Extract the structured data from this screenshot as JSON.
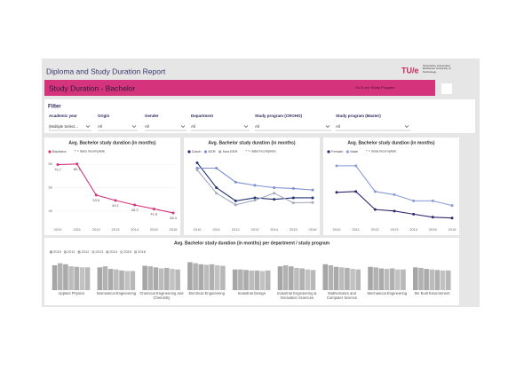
{
  "header": {
    "title": "Diploma and Study Duration Report",
    "logo": "TU/e",
    "logo_caption": "Technische Universiteit Eindhoven University of Technology",
    "banner": "Study Duration - Bachelor",
    "link": "Go to our Study Program"
  },
  "filter": {
    "title": "Filter",
    "fields": [
      {
        "label": "Academic year",
        "value": "(Multiple Select..."
      },
      {
        "label": "Origin",
        "value": "All"
      },
      {
        "label": "Gender",
        "value": "All"
      },
      {
        "label": "Department",
        "value": "All"
      },
      {
        "label": "Study program (CROHO)",
        "value": "All"
      },
      {
        "label": "Study program (Master)",
        "value": "All"
      }
    ]
  },
  "chart_data": [
    {
      "type": "line",
      "title": "Avg. Bachelor study duration (in months)",
      "note": "* = data incomplete",
      "categories": [
        "2010",
        "2011",
        "2012",
        "2013",
        "2014",
        "2015",
        "2016"
      ],
      "series": [
        {
          "name": "Bachelor",
          "color": "#d6337d",
          "values": [
            79.7,
            80.3,
            53.6,
            49.1,
            45.2,
            41.8,
            38.4
          ]
        }
      ],
      "ylim": [
        30,
        90
      ],
      "yticks": [
        40,
        60,
        80
      ],
      "grid": true,
      "data_labels": true
    },
    {
      "type": "line",
      "title": "Avg. Bachelor study duration (in months)",
      "note": "* = data incomplete",
      "categories": [
        "2010",
        "2011",
        "2012",
        "2013",
        "2014",
        "2015",
        "2016"
      ],
      "series": [
        {
          "name": "Dutch",
          "color": "#243473",
          "values": [
            81.3,
            60,
            48.7,
            51.3,
            50,
            51.3,
            51.3
          ]
        },
        {
          "name": "EER",
          "color": "#7d8fd0",
          "values": [
            76.7,
            76.7,
            64.7,
            62,
            60,
            59.3,
            58
          ]
        },
        {
          "name": "Non EER",
          "color": "#a3aabf",
          "values": [
            75.3,
            55.3,
            45.3,
            49.3,
            55.3,
            47,
            47.3
          ]
        }
      ],
      "ylim": [
        30,
        90
      ],
      "yticks": [],
      "grid": false,
      "data_labels": false
    },
    {
      "type": "line",
      "title": "Avg. Bachelor study duration (in months)",
      "note": "* = data incomplete",
      "categories": [
        "2010",
        "2011",
        "2012",
        "2013",
        "2014",
        "2015",
        "2016"
      ],
      "series": [
        {
          "name": "Female",
          "color": "#2c2a6e",
          "values": [
            56,
            56.7,
            41.3,
            40,
            37.3,
            34.7,
            34
          ]
        },
        {
          "name": "Male",
          "color": "#8a9bd6",
          "values": [
            78.7,
            78.7,
            56.7,
            54,
            48.7,
            48.7,
            44.7
          ]
        }
      ],
      "ylim": [
        30,
        90
      ],
      "yticks": [],
      "grid": false,
      "data_labels": false
    },
    {
      "type": "bar",
      "title": "Avg. Bachelor study duration (in months) per department / study program",
      "categories": [
        "Applied Physics",
        "Biomedical Engineering",
        "Chemical Engineering and Chemistry",
        "Electrical Engineering",
        "Industrial Design",
        "Industrial Engineering & Innovation Sciences",
        "Mathematics and Computer Science",
        "Mechanical Engineering",
        "the Built Environment"
      ],
      "series": [
        {
          "name": "2010",
          "color": "#a6a6a6",
          "values": [
            48,
            44,
            47,
            54,
            40,
            46,
            50,
            45,
            44
          ]
        },
        {
          "name": "2011",
          "color": "#b2b2b2",
          "values": [
            52,
            46,
            46,
            52,
            40,
            48,
            48,
            44,
            43
          ]
        },
        {
          "name": "2012",
          "color": "#aaaaaa",
          "values": [
            50,
            41,
            44,
            50,
            39,
            46,
            45,
            42,
            41
          ]
        },
        {
          "name": "2013",
          "color": "#bcbcbc",
          "values": [
            46,
            40,
            42,
            49,
            38,
            43,
            44,
            41,
            40
          ]
        },
        {
          "name": "2014",
          "color": "#b0b0b0",
          "values": [
            45,
            38,
            43,
            50,
            38,
            42,
            43,
            42,
            39
          ]
        },
        {
          "name": "2015",
          "color": "#c2c2c2",
          "values": [
            44,
            37,
            41,
            48,
            37,
            40,
            41,
            40,
            38
          ]
        },
        {
          "name": "2016",
          "color": "#b8b8b8",
          "values": [
            44,
            37,
            40,
            47,
            38,
            39,
            40,
            40,
            38
          ]
        }
      ],
      "ylim": [
        0,
        60
      ]
    }
  ]
}
